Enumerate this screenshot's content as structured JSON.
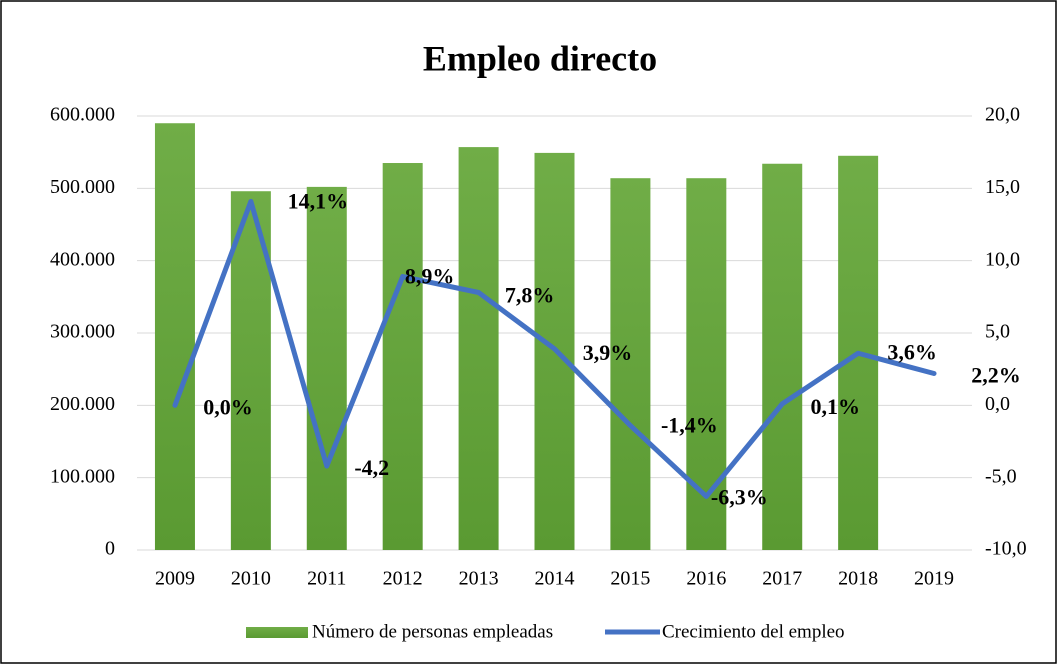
{
  "chart_data": {
    "type": "bar",
    "title": "Empleo directo",
    "categories": [
      "2009",
      "2010",
      "2011",
      "2012",
      "2013",
      "2014",
      "2015",
      "2016",
      "2017",
      "2018",
      "2019"
    ],
    "series": [
      {
        "name": "Número de personas empleadas",
        "type": "bar",
        "color": "#70ad47",
        "values": [
          590000,
          496000,
          502000,
          535000,
          557000,
          549000,
          514000,
          514000,
          534000,
          545000,
          null
        ]
      },
      {
        "name": "Crecimiento del empleo",
        "type": "line",
        "axis": "y2",
        "color": "#4472c4",
        "values": [
          0.0,
          14.1,
          -4.2,
          8.9,
          7.8,
          3.9,
          -1.4,
          -6.3,
          0.1,
          3.6,
          2.2
        ],
        "value_labels": [
          "0,0%",
          "14,1%",
          "-4,2",
          "8,9%",
          "7,8%",
          "3,9%",
          "-1,4%",
          "-6,3%",
          "0,1%",
          "3,6%",
          "2,2%"
        ]
      }
    ],
    "ylim": [
      0,
      600000
    ],
    "yticks": [
      0,
      {
        "value": 100000,
        "label": "100.000"
      },
      {
        "value": 200000,
        "label": "200.000"
      },
      {
        "value": 300000,
        "label": "300.000"
      },
      {
        "value": 400000,
        "label": "400.000"
      },
      {
        "value": 500000,
        "label": "500.000"
      },
      {
        "value": 600000,
        "label": "600.000"
      }
    ],
    "y2lim": [
      -10,
      20
    ],
    "y2ticks": [
      {
        "value": -10,
        "label": "-10,0"
      },
      {
        "value": -5,
        "label": "-5,0"
      },
      {
        "value": 0,
        "label": "0,0"
      },
      {
        "value": 5,
        "label": "5,0"
      },
      {
        "value": 10,
        "label": "10,0"
      },
      {
        "value": 15,
        "label": "15,0"
      },
      {
        "value": 20,
        "label": "20,0"
      }
    ],
    "grid": true
  }
}
